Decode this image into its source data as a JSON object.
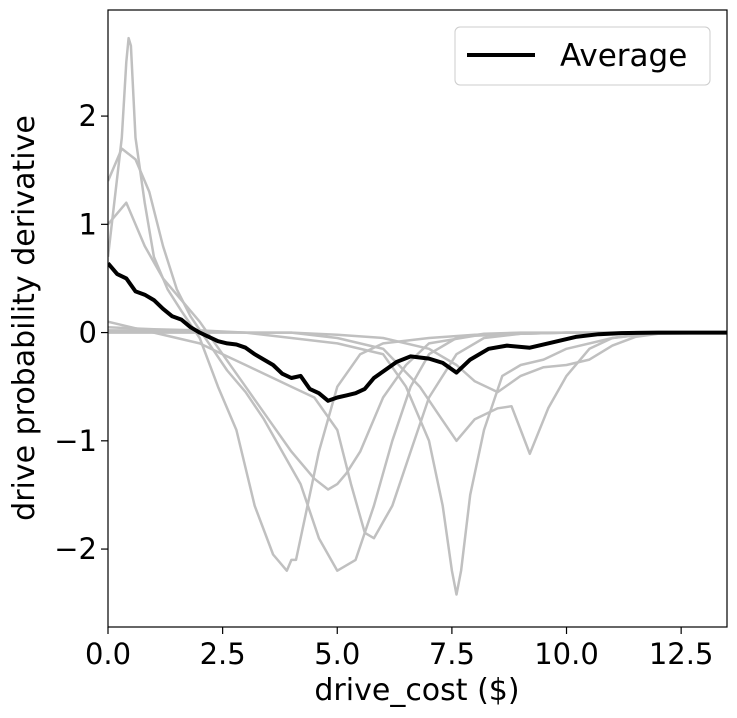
{
  "chart_data": {
    "type": "line",
    "title": "",
    "xlabel": "drive_cost ($)",
    "ylabel": "drive probability derivative",
    "xlim": [
      0,
      13.5
    ],
    "ylim": [
      -2.72,
      2.98
    ],
    "xticks": [
      0.0,
      2.5,
      5.0,
      7.5,
      10.0,
      12.5
    ],
    "xtick_labels": [
      "0.0",
      "2.5",
      "5.0",
      "7.5",
      "10.0",
      "12.5"
    ],
    "yticks": [
      -2,
      -1,
      0,
      1,
      2
    ],
    "ytick_labels": [
      "−2",
      "−1",
      "0",
      "1",
      "2"
    ],
    "grid": false,
    "legend": {
      "position": "top-right",
      "entries": [
        "Average"
      ]
    },
    "colors": {
      "average": "#000000",
      "individual": "#c0c0c0"
    },
    "series": [
      {
        "name": "Average",
        "role": "average",
        "x": [
          0,
          0.2,
          0.4,
          0.6,
          0.8,
          1.0,
          1.2,
          1.4,
          1.6,
          1.8,
          2.0,
          2.2,
          2.4,
          2.6,
          2.8,
          3.0,
          3.2,
          3.4,
          3.6,
          3.8,
          4.0,
          4.2,
          4.4,
          4.6,
          4.8,
          5.0,
          5.2,
          5.4,
          5.6,
          5.8,
          6.0,
          6.3,
          6.6,
          7.0,
          7.3,
          7.6,
          7.9,
          8.3,
          8.7,
          9.2,
          9.7,
          10.2,
          10.7,
          11.2,
          12.0,
          13.5
        ],
        "y": [
          0.64,
          0.54,
          0.5,
          0.38,
          0.35,
          0.3,
          0.22,
          0.15,
          0.12,
          0.05,
          0.0,
          -0.04,
          -0.08,
          -0.1,
          -0.11,
          -0.14,
          -0.2,
          -0.25,
          -0.3,
          -0.38,
          -0.42,
          -0.4,
          -0.52,
          -0.56,
          -0.63,
          -0.6,
          -0.58,
          -0.56,
          -0.52,
          -0.42,
          -0.36,
          -0.27,
          -0.22,
          -0.24,
          -0.28,
          -0.37,
          -0.25,
          -0.15,
          -0.12,
          -0.14,
          -0.09,
          -0.04,
          -0.015,
          -0.005,
          0.0,
          0.0
        ]
      },
      {
        "name": "",
        "role": "individual",
        "x": [
          0,
          0.3,
          0.4,
          0.45,
          0.5,
          0.6,
          0.8,
          1.0,
          1.3,
          1.6,
          2.0,
          2.4,
          2.8,
          3.2,
          3.6,
          3.9,
          4.0,
          4.1,
          4.3,
          4.6,
          5.0,
          5.5,
          6.0,
          7.0,
          8.0,
          9.0,
          10.0,
          11.0,
          12.0,
          13.5
        ],
        "y": [
          0.7,
          1.8,
          2.5,
          2.72,
          2.65,
          1.8,
          1.2,
          0.7,
          0.4,
          0.2,
          -0.05,
          -0.5,
          -0.9,
          -1.6,
          -2.05,
          -2.2,
          -2.1,
          -2.1,
          -1.7,
          -1.1,
          -0.5,
          -0.2,
          -0.1,
          -0.05,
          -0.02,
          -0.01,
          0.0,
          0.0,
          0.0,
          0.0
        ]
      },
      {
        "name": "",
        "role": "individual",
        "x": [
          0,
          0.3,
          0.6,
          0.9,
          1.2,
          1.5,
          1.8,
          2.2,
          2.6,
          3.0,
          3.4,
          3.8,
          4.2,
          4.6,
          5.0,
          5.4,
          5.8,
          6.2,
          6.6,
          7.0,
          7.6,
          8.2,
          9.0,
          10.0,
          11.0,
          12.0,
          13.5
        ],
        "y": [
          1.4,
          1.7,
          1.6,
          1.3,
          0.8,
          0.4,
          0.15,
          -0.1,
          -0.35,
          -0.55,
          -0.8,
          -1.1,
          -1.4,
          -1.9,
          -2.2,
          -2.1,
          -1.6,
          -1.0,
          -0.5,
          -0.2,
          -0.05,
          -0.01,
          0.0,
          0.0,
          0.0,
          0.0,
          0.0
        ]
      },
      {
        "name": "",
        "role": "individual",
        "x": [
          0,
          0.4,
          0.8,
          1.2,
          1.6,
          2.0,
          2.5,
          3.0,
          3.5,
          4.0,
          4.5,
          4.8,
          5.0,
          5.2,
          5.5,
          6.0,
          6.5,
          7.0,
          8.0,
          9.0,
          10.0,
          11.0,
          12.0,
          13.5
        ],
        "y": [
          1.0,
          1.2,
          0.8,
          0.5,
          0.3,
          0.1,
          -0.2,
          -0.5,
          -0.8,
          -1.1,
          -1.35,
          -1.45,
          -1.4,
          -1.3,
          -1.1,
          -0.6,
          -0.3,
          -0.1,
          -0.03,
          -0.01,
          0.0,
          0.0,
          0.0,
          0.0
        ]
      },
      {
        "name": "",
        "role": "individual",
        "x": [
          0,
          0.5,
          1.0,
          1.5,
          2.0,
          2.5,
          3.0,
          3.5,
          4.0,
          4.5,
          5.0,
          5.3,
          5.6,
          5.8,
          6.2,
          6.6,
          7.0,
          7.6,
          8.2,
          9.0,
          10.0,
          11.0,
          12.0,
          13.5
        ],
        "y": [
          0.1,
          0.05,
          0.0,
          -0.05,
          -0.1,
          -0.2,
          -0.3,
          -0.4,
          -0.5,
          -0.6,
          -0.9,
          -1.4,
          -1.85,
          -1.9,
          -1.6,
          -1.1,
          -0.6,
          -0.2,
          -0.05,
          -0.01,
          0.0,
          0.0,
          0.0,
          0.0
        ]
      },
      {
        "name": "",
        "role": "individual",
        "x": [
          0,
          1.0,
          2.0,
          3.0,
          4.0,
          5.0,
          6.0,
          6.5,
          7.0,
          7.3,
          7.5,
          7.6,
          7.7,
          7.9,
          8.2,
          8.6,
          9.0,
          9.5,
          10.0,
          11.0,
          12.0,
          13.5
        ],
        "y": [
          0.05,
          0.03,
          0.02,
          0.0,
          -0.05,
          -0.1,
          -0.2,
          -0.5,
          -1.0,
          -1.6,
          -2.2,
          -2.42,
          -2.2,
          -1.5,
          -0.9,
          -0.4,
          -0.3,
          -0.25,
          -0.15,
          -0.05,
          0.0,
          0.0
        ]
      },
      {
        "name": "",
        "role": "individual",
        "x": [
          0,
          1.0,
          2.0,
          3.0,
          4.0,
          5.0,
          6.0,
          6.8,
          7.2,
          7.6,
          8.0,
          8.5,
          8.8,
          9.0,
          9.2,
          9.6,
          10.0,
          10.5,
          11.0,
          12.0,
          13.5
        ],
        "y": [
          0.02,
          0.02,
          0.01,
          0.0,
          0.0,
          -0.05,
          -0.15,
          -0.5,
          -0.75,
          -1.0,
          -0.8,
          -0.7,
          -0.68,
          -0.9,
          -1.12,
          -0.7,
          -0.4,
          -0.15,
          -0.05,
          0.0,
          0.0
        ]
      },
      {
        "name": "",
        "role": "individual",
        "x": [
          0,
          1.0,
          2.0,
          3.0,
          4.0,
          5.0,
          6.0,
          7.0,
          7.6,
          8.0,
          8.5,
          9.0,
          9.5,
          10.0,
          10.5,
          11.0,
          11.5,
          12.0,
          13.5
        ],
        "y": [
          0.0,
          0.0,
          0.0,
          0.0,
          0.0,
          -0.02,
          -0.05,
          -0.15,
          -0.3,
          -0.45,
          -0.55,
          -0.4,
          -0.32,
          -0.3,
          -0.25,
          -0.12,
          -0.04,
          -0.01,
          0.0
        ]
      }
    ]
  }
}
